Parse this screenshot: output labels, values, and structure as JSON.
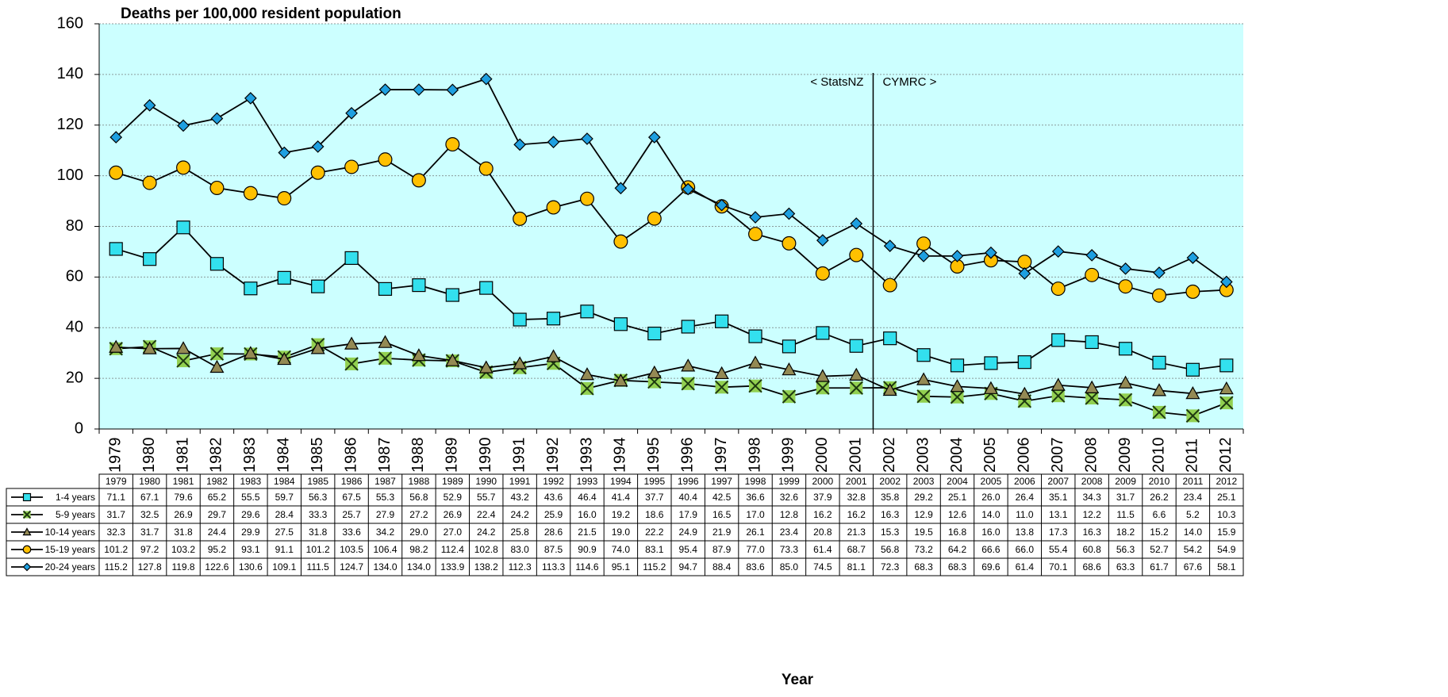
{
  "chart_data": {
    "type": "line",
    "title": "Deaths per 100,000 resident population",
    "x_label": "Year",
    "annotations": [
      "< StatsNZ",
      "CYMRC >"
    ],
    "categories": [
      "1979",
      "1980",
      "1981",
      "1982",
      "1983",
      "1984",
      "1985",
      "1986",
      "1987",
      "1988",
      "1989",
      "1990",
      "1991",
      "1992",
      "1993",
      "1994",
      "1995",
      "1996",
      "1997",
      "1998",
      "1999",
      "2000",
      "2001",
      "2002",
      "2003",
      "2004",
      "2005",
      "2006",
      "2007",
      "2008",
      "2009",
      "2010",
      "2011",
      "2012"
    ],
    "ylim": [
      0,
      160
    ],
    "yticks": [
      0,
      20,
      40,
      60,
      80,
      100,
      120,
      140,
      160
    ],
    "grid": true,
    "series": [
      {
        "name": "1-4 years",
        "color": "#33e0ee",
        "marker": "square",
        "values": [
          71.1,
          67.1,
          79.6,
          65.2,
          55.5,
          59.7,
          56.3,
          67.5,
          55.3,
          56.8,
          52.9,
          55.7,
          43.2,
          43.6,
          46.4,
          41.4,
          37.7,
          40.4,
          42.5,
          36.6,
          32.6,
          37.9,
          32.8,
          35.8,
          29.2,
          25.1,
          26.0,
          26.4,
          35.1,
          34.3,
          31.7,
          26.2,
          23.4,
          25.1
        ],
        "value_labels": [
          "71.1",
          "67.1",
          "79.6",
          "65.2",
          "55.5",
          "59.7",
          "56.3",
          "67.5",
          "55.3",
          "56.8",
          "52.9",
          "55.7",
          "43.2",
          "43.6",
          "46.4",
          "41.4",
          "37.7",
          "40.4",
          "42.5",
          "36.6",
          "32.6",
          "37.9",
          "32.8",
          "35.8",
          "29.2",
          "25.1",
          "26.0",
          "26.4",
          "35.1",
          "34.3",
          "31.7",
          "26.2",
          "23.4",
          "25.1"
        ]
      },
      {
        "name": "5-9 years",
        "color": "#92d050",
        "marker": "x",
        "values": [
          31.7,
          32.5,
          26.9,
          29.7,
          29.6,
          28.4,
          33.3,
          25.7,
          27.9,
          27.2,
          26.9,
          22.4,
          24.2,
          25.9,
          16.0,
          19.2,
          18.6,
          17.9,
          16.5,
          17.0,
          12.8,
          16.2,
          16.2,
          16.3,
          12.9,
          12.6,
          14.0,
          11.0,
          13.1,
          12.2,
          11.5,
          6.6,
          5.2,
          10.3
        ],
        "value_labels": [
          "31.7",
          "32.5",
          "26.9",
          "29.7",
          "29.6",
          "28.4",
          "33.3",
          "25.7",
          "27.9",
          "27.2",
          "26.9",
          "22.4",
          "24.2",
          "25.9",
          "16.0",
          "19.2",
          "18.6",
          "17.9",
          "16.5",
          "17.0",
          "12.8",
          "16.2",
          "16.2",
          "16.3",
          "12.9",
          "12.6",
          "14.0",
          "11.0",
          "13.1",
          "12.2",
          "11.5",
          "6.6",
          "5.2",
          "10.3"
        ]
      },
      {
        "name": "10-14 years",
        "color": "#948a54",
        "marker": "triangle",
        "values": [
          32.3,
          31.7,
          31.8,
          24.4,
          29.9,
          27.5,
          31.8,
          33.6,
          34.2,
          29.0,
          27.0,
          24.2,
          25.8,
          28.6,
          21.5,
          19.0,
          22.2,
          24.9,
          21.9,
          26.1,
          23.4,
          20.8,
          21.3,
          15.3,
          19.5,
          16.8,
          16.0,
          13.8,
          17.3,
          16.3,
          18.2,
          15.2,
          14.0,
          15.9
        ],
        "value_labels": [
          "32.3",
          "31.7",
          "31.8",
          "24.4",
          "29.9",
          "27.5",
          "31.8",
          "33.6",
          "34.2",
          "29.0",
          "27.0",
          "24.2",
          "25.8",
          "28.6",
          "21.5",
          "19.0",
          "22.2",
          "24.9",
          "21.9",
          "26.1",
          "23.4",
          "20.8",
          "21.3",
          "15.3",
          "19.5",
          "16.8",
          "16.0",
          "13.8",
          "17.3",
          "16.3",
          "18.2",
          "15.2",
          "14.0",
          "15.9"
        ]
      },
      {
        "name": "15-19 years",
        "color": "#ffc000",
        "marker": "circle",
        "values": [
          101.2,
          97.2,
          103.2,
          95.2,
          93.1,
          91.1,
          101.2,
          103.5,
          106.4,
          98.2,
          112.4,
          102.8,
          83.0,
          87.5,
          90.9,
          74.0,
          83.1,
          95.4,
          87.9,
          77.0,
          73.3,
          61.4,
          68.7,
          56.8,
          73.2,
          64.2,
          66.6,
          66.0,
          55.4,
          60.8,
          56.3,
          52.7,
          54.2,
          54.9
        ],
        "value_labels": [
          "101.2",
          "97.2",
          "103.2",
          "95.2",
          "93.1",
          "91.1",
          "101.2",
          "103.5",
          "106.4",
          "98.2",
          "112.4",
          "102.8",
          "83.0",
          "87.5",
          "90.9",
          "74.0",
          "83.1",
          "95.4",
          "87.9",
          "77.0",
          "73.3",
          "61.4",
          "68.7",
          "56.8",
          "73.2",
          "64.2",
          "66.6",
          "66.0",
          "55.4",
          "60.8",
          "56.3",
          "52.7",
          "54.2",
          "54.9"
        ]
      },
      {
        "name": "20-24 years",
        "color": "#1e9fe0",
        "marker": "diamond",
        "values": [
          115.2,
          127.8,
          119.8,
          122.6,
          130.6,
          109.1,
          111.5,
          124.7,
          134.0,
          134.0,
          133.9,
          138.2,
          112.3,
          113.3,
          114.6,
          95.1,
          115.2,
          94.7,
          88.4,
          83.6,
          85.0,
          74.5,
          81.1,
          72.3,
          68.3,
          68.3,
          69.6,
          61.4,
          70.1,
          68.6,
          63.3,
          61.7,
          67.6,
          58.1
        ],
        "value_labels": [
          "115.2",
          "127.8",
          "119.8",
          "122.6",
          "130.6",
          "109.1",
          "111.5",
          "124.7",
          "134.0",
          "134.0",
          "133.9",
          "138.2",
          "112.3",
          "113.3",
          "114.6",
          "95.1",
          "115.2",
          "94.7",
          "88.4",
          "83.6",
          "85.0",
          "74.5",
          "81.1",
          "72.3",
          "68.3",
          "68.3",
          "69.6",
          "61.4",
          "70.1",
          "68.6",
          "63.3",
          "61.7",
          "67.6",
          "58.1"
        ]
      }
    ]
  }
}
